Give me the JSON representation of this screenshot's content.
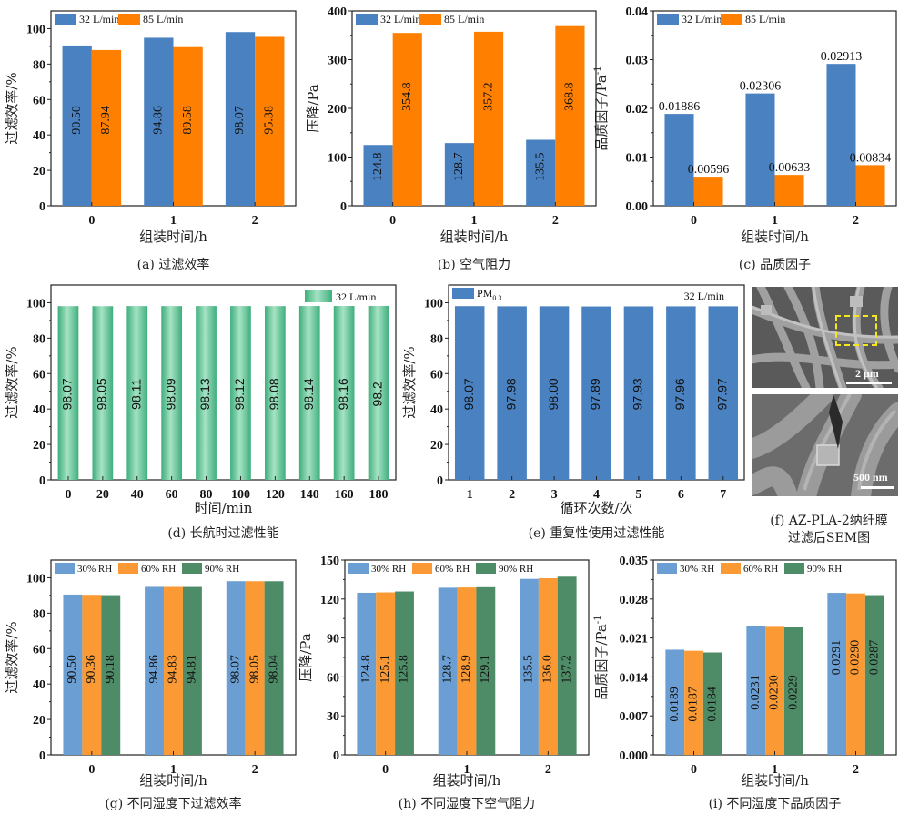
{
  "colors": {
    "blue": "#4a82c1",
    "orange": "#ff7f00",
    "green_gradient_light": "#9fe0c0",
    "green_gradient_dark": "#3fae7d",
    "rh30": "#6b9fd3",
    "rh60": "#fb9a34",
    "rh90": "#4e8c67",
    "roi_box": "#f4e81c"
  },
  "chart_data": [
    {
      "id": "a",
      "type": "bar",
      "caption": "(a)  过滤效率",
      "xlabel": "组装时间/h",
      "ylabel": "过滤效率/%",
      "categories": [
        "0",
        "1",
        "2"
      ],
      "ylim": [
        0,
        110
      ],
      "yticks": [
        0,
        20,
        40,
        60,
        80,
        100
      ],
      "ytick_labels": [
        "0",
        "20",
        "40",
        "60",
        "80",
        "100"
      ],
      "label_style": "vertical-inside",
      "legend": "top-left",
      "series": [
        {
          "name": "32 L/min",
          "color": "#4a82c1",
          "values": [
            90.5,
            94.86,
            98.07
          ],
          "labels": [
            "90.50",
            "94.86",
            "98.07"
          ]
        },
        {
          "name": "85 L/min",
          "color": "#ff7f00",
          "values": [
            87.94,
            89.58,
            95.38
          ],
          "labels": [
            "87.94",
            "89.58",
            "95.38"
          ]
        }
      ]
    },
    {
      "id": "b",
      "type": "bar",
      "caption": "(b)  空气阻力",
      "xlabel": "组装时间/h",
      "ylabel": "压降/Pa",
      "categories": [
        "0",
        "1",
        "2"
      ],
      "ylim": [
        0,
        400
      ],
      "yticks": [
        0,
        100,
        200,
        300,
        400
      ],
      "ytick_labels": [
        "0",
        "100",
        "200",
        "300",
        "400"
      ],
      "label_style": "vertical-inside",
      "legend": "top-left",
      "series": [
        {
          "name": "32 L/min",
          "color": "#4a82c1",
          "values": [
            124.8,
            128.7,
            135.5
          ],
          "labels": [
            "124.8",
            "128.7",
            "135.5"
          ]
        },
        {
          "name": "85 L/min",
          "color": "#ff7f00",
          "values": [
            354.8,
            357.2,
            368.8
          ],
          "labels": [
            "354.8",
            "357.2",
            "368.8"
          ]
        }
      ]
    },
    {
      "id": "c",
      "type": "bar",
      "caption": "(c)  品质因子",
      "xlabel": "组装时间/h",
      "ylabel": "品质因子/Pa",
      "ylabel_sup": "-1",
      "categories": [
        "0",
        "1",
        "2"
      ],
      "ylim": [
        0,
        0.04
      ],
      "yticks": [
        0,
        0.01,
        0.02,
        0.03,
        0.04
      ],
      "ytick_labels": [
        "0.00",
        "0.01",
        "0.02",
        "0.03",
        "0.04"
      ],
      "label_style": "horizontal-above",
      "legend": "top-left",
      "series": [
        {
          "name": "32 L/min",
          "color": "#4a82c1",
          "values": [
            0.01886,
            0.02306,
            0.02913
          ],
          "labels": [
            "0.01886",
            "0.02306",
            "0.02913"
          ]
        },
        {
          "name": "85 L/min",
          "color": "#ff7f00",
          "values": [
            0.00596,
            0.00633,
            0.00834
          ],
          "labels": [
            "0.00596",
            "0.00633",
            "0.00834"
          ]
        }
      ]
    },
    {
      "id": "d",
      "type": "bar",
      "caption": "(d)  长航时过滤性能",
      "xlabel": "时间/min",
      "ylabel": "过滤效率/%",
      "categories": [
        "0",
        "20",
        "40",
        "60",
        "80",
        "100",
        "120",
        "140",
        "160",
        "180"
      ],
      "ylim": [
        0,
        110
      ],
      "yticks": [
        0,
        20,
        40,
        60,
        80,
        100
      ],
      "ytick_labels": [
        "0",
        "20",
        "40",
        "60",
        "80",
        "100"
      ],
      "label_style": "vertical-inside",
      "legend": "top-right",
      "series": [
        {
          "name": "32 L/min",
          "color": "gradient-green",
          "values": [
            98.07,
            98.05,
            98.11,
            98.09,
            98.13,
            98.12,
            98.08,
            98.14,
            98.16,
            98.2
          ],
          "labels": [
            "98.07",
            "98.05",
            "98.11",
            "98.09",
            "98.13",
            "98.12",
            "98.08",
            "98.14",
            "98.16",
            "98.2"
          ]
        }
      ]
    },
    {
      "id": "e",
      "type": "bar",
      "caption": "(e)  重复性使用过滤性能",
      "xlabel": "循环次数/次",
      "ylabel": "过滤效率/%",
      "categories": [
        "1",
        "2",
        "3",
        "4",
        "5",
        "6",
        "7"
      ],
      "ylim": [
        0,
        110
      ],
      "yticks": [
        0,
        20,
        40,
        60,
        80,
        100
      ],
      "ytick_labels": [
        "0",
        "20",
        "40",
        "60",
        "80",
        "100"
      ],
      "label_style": "vertical-inside",
      "legend": "top-left",
      "annotation": "32 L/min",
      "series": [
        {
          "name": "PM",
          "name_sub": "0.3",
          "color": "#4a82c1",
          "values": [
            98.07,
            97.98,
            98.0,
            97.89,
            97.93,
            97.96,
            97.97
          ],
          "labels": [
            "98.07",
            "97.98",
            "98.00",
            "97.89",
            "97.93",
            "97.96",
            "97.97"
          ]
        }
      ]
    },
    {
      "id": "g",
      "type": "bar",
      "caption": "(g)  不同湿度下过滤效率",
      "xlabel": "组装时间/h",
      "ylabel": "过滤效率/%",
      "categories": [
        "0",
        "1",
        "2"
      ],
      "ylim": [
        0,
        110
      ],
      "yticks": [
        0,
        20,
        40,
        60,
        80,
        100
      ],
      "ytick_labels": [
        "0",
        "20",
        "40",
        "60",
        "80",
        "100"
      ],
      "label_style": "vertical-inside",
      "legend": "top-left",
      "series": [
        {
          "name": "30% RH",
          "color": "#6b9fd3",
          "values": [
            90.5,
            94.86,
            98.07
          ],
          "labels": [
            "90.50",
            "94.86",
            "98.07"
          ]
        },
        {
          "name": "60% RH",
          "color": "#fb9a34",
          "values": [
            90.36,
            94.83,
            98.05
          ],
          "labels": [
            "90.36",
            "94.83",
            "98.05"
          ]
        },
        {
          "name": "90% RH",
          "color": "#4e8c67",
          "values": [
            90.18,
            94.81,
            98.04
          ],
          "labels": [
            "90.18",
            "94.81",
            "98.04"
          ]
        }
      ]
    },
    {
      "id": "h",
      "type": "bar",
      "caption": "(h)  不同湿度下空气阻力",
      "xlabel": "组装时间/h",
      "ylabel": "压降/Pa",
      "categories": [
        "0",
        "1",
        "2"
      ],
      "ylim": [
        0,
        150
      ],
      "yticks": [
        0,
        30,
        60,
        90,
        120,
        150
      ],
      "ytick_labels": [
        "0",
        "30",
        "60",
        "90",
        "120",
        "150"
      ],
      "label_style": "vertical-inside",
      "legend": "top-left",
      "series": [
        {
          "name": "30% RH",
          "color": "#6b9fd3",
          "values": [
            124.8,
            128.7,
            135.5
          ],
          "labels": [
            "124.8",
            "128.7",
            "135.5"
          ]
        },
        {
          "name": "60% RH",
          "color": "#fb9a34",
          "values": [
            125.1,
            128.9,
            136.0
          ],
          "labels": [
            "125.1",
            "128.9",
            "136.0"
          ]
        },
        {
          "name": "90% RH",
          "color": "#4e8c67",
          "values": [
            125.8,
            129.1,
            137.2
          ],
          "labels": [
            "125.8",
            "129.1",
            "137.2"
          ]
        }
      ]
    },
    {
      "id": "i",
      "type": "bar",
      "caption": "(i)  不同湿度下品质因子",
      "xlabel": "组装时间/h",
      "ylabel": "品质因子/Pa",
      "ylabel_sup": "-1",
      "categories": [
        "0",
        "1",
        "2"
      ],
      "ylim": [
        0,
        0.035
      ],
      "yticks": [
        0,
        0.007,
        0.014,
        0.021,
        0.028,
        0.035
      ],
      "ytick_labels": [
        "0.000",
        "0.007",
        "0.014",
        "0.021",
        "0.028",
        "0.035"
      ],
      "label_style": "vertical-inside",
      "legend": "top-left",
      "series": [
        {
          "name": "30% RH",
          "color": "#6b9fd3",
          "values": [
            0.0189,
            0.0231,
            0.0291
          ],
          "labels": [
            "0.0189",
            "0.0231",
            "0.0291"
          ]
        },
        {
          "name": "60% RH",
          "color": "#fb9a34",
          "values": [
            0.0187,
            0.023,
            0.029
          ],
          "labels": [
            "0.0187",
            "0.0230",
            "0.0290"
          ]
        },
        {
          "name": "90% RH",
          "color": "#4e8c67",
          "values": [
            0.0184,
            0.0229,
            0.0287
          ],
          "labels": [
            "0.0184",
            "0.0229",
            "0.0287"
          ]
        }
      ]
    }
  ],
  "sem_panel": {
    "caption_line1": "(f)  AZ-PLA-2纳纤膜",
    "caption_line2": "过滤后SEM图",
    "top_scale_label": "2 μm",
    "bottom_scale_label": "500 nm",
    "top_image": "sem-image-low-magnification",
    "bottom_image": "sem-image-high-magnification"
  }
}
